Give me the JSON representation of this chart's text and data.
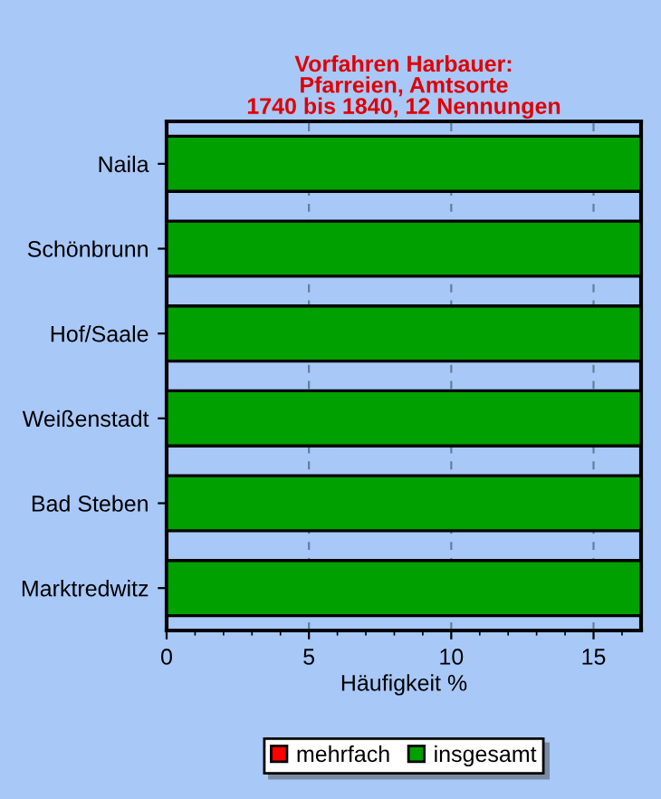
{
  "chart_data": {
    "type": "bar",
    "orientation": "horizontal",
    "title": "Vorfahren Harbauer:\nPfarreien, Amtsorte\n1740 bis 1840, 12 Nennungen",
    "xlabel": "Häufigkeit %",
    "categories": [
      "Naila",
      "Schönbrunn",
      "Hof/Saale",
      "Weißenstadt",
      "Bad Steben",
      "Marktredwitz"
    ],
    "series": [
      {
        "name": "mehrfach",
        "color": "#ff0000",
        "values": [
          null,
          null,
          null,
          null,
          null,
          null
        ]
      },
      {
        "name": "insgesamt",
        "color": "#00a000",
        "values": [
          16.67,
          16.67,
          16.67,
          16.67,
          16.67,
          16.67
        ]
      }
    ],
    "xlim": [
      0,
      16.67
    ],
    "xticks": [
      0,
      5,
      10,
      15
    ],
    "grid": "x",
    "legend": "bottom"
  }
}
